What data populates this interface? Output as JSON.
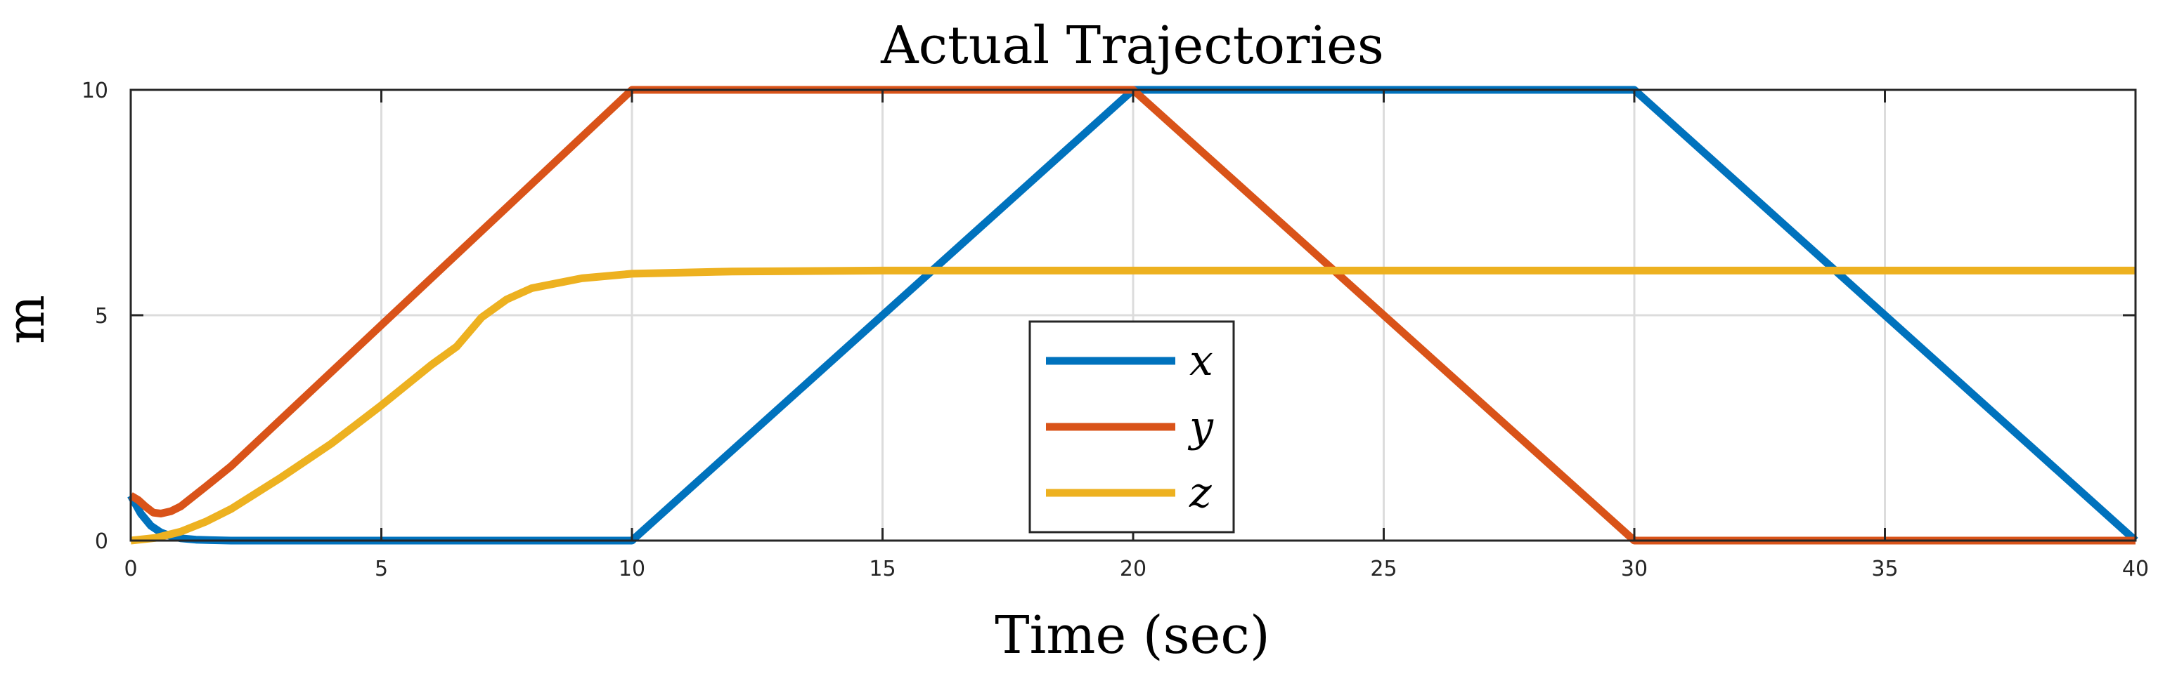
{
  "chart_data": {
    "type": "line",
    "title": "Actual Trajectories",
    "xlabel": "Time (sec)",
    "ylabel": "m",
    "xlim": [
      0,
      40
    ],
    "ylim": [
      0,
      10
    ],
    "xticks": [
      0,
      5,
      10,
      15,
      20,
      25,
      30,
      35,
      40
    ],
    "yticks": [
      0,
      5,
      10
    ],
    "xtick_labels": [
      "0",
      "5",
      "10",
      "15",
      "20",
      "25",
      "30",
      "35",
      "40"
    ],
    "ytick_labels": [
      "0",
      "5",
      "10"
    ],
    "grid": true,
    "legend_position": "bottom-center",
    "series": [
      {
        "name": "x",
        "color": "#0072BD",
        "x": [
          0,
          0.2,
          0.4,
          0.6,
          0.8,
          1.0,
          1.3,
          1.6,
          2.0,
          10,
          20,
          30,
          40
        ],
        "y": [
          1.0,
          0.6,
          0.33,
          0.18,
          0.1,
          0.05,
          0.02,
          0.01,
          0.0,
          0.0,
          10,
          10,
          0
        ]
      },
      {
        "name": "y",
        "color": "#D95319",
        "x": [
          0,
          0.15,
          0.3,
          0.45,
          0.6,
          0.8,
          1.0,
          1.5,
          2.0,
          10,
          20,
          30,
          40
        ],
        "y": [
          1.0,
          0.9,
          0.75,
          0.62,
          0.6,
          0.65,
          0.76,
          1.2,
          1.65,
          10,
          10,
          0,
          0
        ]
      },
      {
        "name": "z",
        "color": "#EDB120",
        "x": [
          0,
          0.5,
          1.0,
          1.5,
          2.0,
          3.0,
          4.0,
          5.0,
          6.0,
          6.5,
          7.0,
          7.5,
          8.0,
          9.0,
          10.0,
          12.0,
          15.0,
          20.0,
          30.0,
          40.0
        ],
        "y": [
          0.0,
          0.06,
          0.2,
          0.42,
          0.7,
          1.4,
          2.15,
          3.0,
          3.9,
          4.3,
          4.95,
          5.35,
          5.6,
          5.82,
          5.92,
          5.97,
          5.99,
          5.99,
          5.99,
          5.99
        ]
      }
    ]
  }
}
